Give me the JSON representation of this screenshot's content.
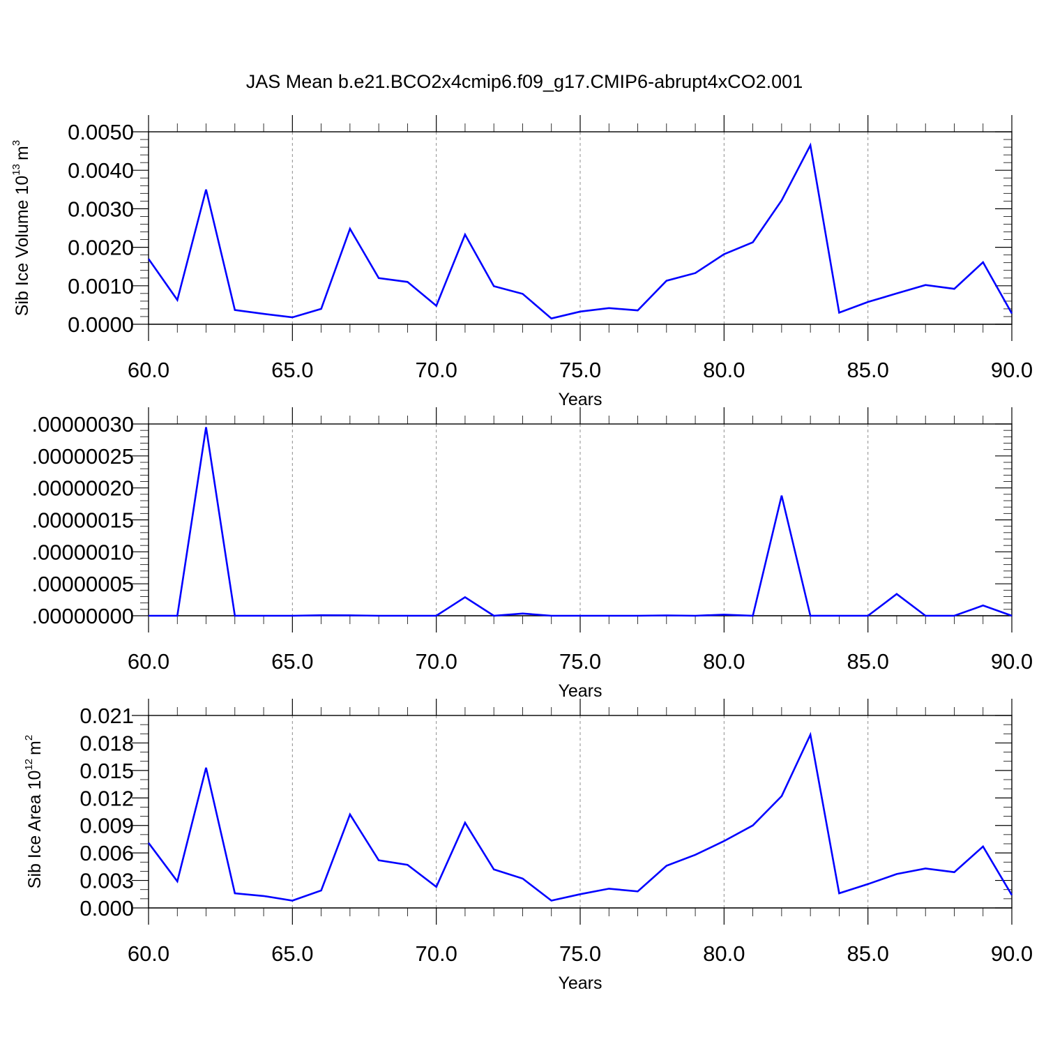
{
  "figure": {
    "title": "JAS Mean b.e21.BCO2x4cmip6.f09_g17.CMIP6-abrupt4xCO2.001"
  },
  "chart_data": [
    {
      "type": "line",
      "xlabel": "Years",
      "ylabel": "Sib Ice Volume 10",
      "ylabel_sup": "13",
      "ylabel_unit": "m",
      "ylabel_unit_sup": "3",
      "xlim": [
        60,
        90
      ],
      "ylim": [
        0,
        0.005
      ],
      "x_ticks": [
        60,
        65,
        70,
        75,
        80,
        85,
        90
      ],
      "x_tick_labels": [
        "60.0",
        "65.0",
        "70.0",
        "75.0",
        "80.0",
        "85.0",
        "90.0"
      ],
      "y_ticks": [
        0,
        0.001,
        0.002,
        0.003,
        0.004,
        0.005
      ],
      "y_tick_labels": [
        "0.0000",
        "0.0010",
        "0.0020",
        "0.0030",
        "0.0040",
        "0.0050"
      ],
      "grid": "vertical dashed at major x ticks",
      "color": "#0000ff",
      "x": [
        60,
        61,
        62,
        63,
        64,
        65,
        66,
        67,
        68,
        69,
        70,
        71,
        72,
        73,
        74,
        75,
        76,
        77,
        78,
        79,
        80,
        81,
        82,
        83,
        84,
        85,
        86,
        87,
        88,
        89,
        90
      ],
      "y": [
        0.0017,
        0.00063,
        0.0035,
        0.00037,
        0.00027,
        0.00018,
        0.0004,
        0.00248,
        0.0012,
        0.0011,
        0.00048,
        0.00233,
        0.00099,
        0.00079,
        0.00015,
        0.00033,
        0.00042,
        0.00036,
        0.00113,
        0.00133,
        0.00182,
        0.00213,
        0.00322,
        0.00465,
        0.0003,
        0.00058,
        0.0008,
        0.00102,
        0.00092,
        0.00161,
        0.00028
      ]
    },
    {
      "type": "line",
      "xlabel": "Years",
      "xlim": [
        60,
        90
      ],
      "ylim": [
        0,
        3e-07
      ],
      "x_ticks": [
        60,
        65,
        70,
        75,
        80,
        85,
        90
      ],
      "x_tick_labels": [
        "60.0",
        "65.0",
        "70.0",
        "75.0",
        "80.0",
        "85.0",
        "90.0"
      ],
      "y_ticks": [
        0,
        5e-08,
        1e-07,
        1.5e-07,
        2e-07,
        2.5e-07,
        3e-07
      ],
      "y_tick_labels": [
        ".00000000",
        ".00000005",
        ".00000010",
        ".00000015",
        ".00000020",
        ".00000025",
        ".00000030"
      ],
      "grid": "vertical dashed at major x ticks",
      "color": "#0000ff",
      "x": [
        60,
        61,
        62,
        63,
        64,
        65,
        66,
        67,
        68,
        69,
        70,
        71,
        72,
        73,
        74,
        75,
        76,
        77,
        78,
        79,
        80,
        81,
        82,
        83,
        84,
        85,
        86,
        87,
        88,
        89,
        90
      ],
      "y": [
        0,
        0,
        2.95e-07,
        0,
        0,
        0,
        8e-10,
        7e-10,
        0,
        0,
        0,
        2.9e-08,
        0,
        3.5e-09,
        0,
        0,
        0,
        0,
        6e-10,
        0,
        1.8e-09,
        0,
        1.88e-07,
        0,
        0,
        0,
        3.4e-08,
        0,
        0,
        1.6e-08,
        0
      ]
    },
    {
      "type": "line",
      "xlabel": "Years",
      "ylabel": "Sib Ice Area 10",
      "ylabel_sup": "12",
      "ylabel_unit": "m",
      "ylabel_unit_sup": "2",
      "xlim": [
        60,
        90
      ],
      "ylim": [
        0,
        0.021
      ],
      "x_ticks": [
        60,
        65,
        70,
        75,
        80,
        85,
        90
      ],
      "x_tick_labels": [
        "60.0",
        "65.0",
        "70.0",
        "75.0",
        "80.0",
        "85.0",
        "90.0"
      ],
      "y_ticks": [
        0,
        0.003,
        0.006,
        0.009,
        0.012,
        0.015,
        0.018,
        0.021
      ],
      "y_tick_labels": [
        "0.000",
        "0.003",
        "0.006",
        "0.009",
        "0.012",
        "0.015",
        "0.018",
        "0.021"
      ],
      "grid": "vertical dashed at major x ticks",
      "color": "#0000ff",
      "x": [
        60,
        61,
        62,
        63,
        64,
        65,
        66,
        67,
        68,
        69,
        70,
        71,
        72,
        73,
        74,
        75,
        76,
        77,
        78,
        79,
        80,
        81,
        82,
        83,
        84,
        85,
        86,
        87,
        88,
        89,
        90
      ],
      "y": [
        0.0071,
        0.0029,
        0.0153,
        0.0016,
        0.0013,
        0.0008,
        0.0019,
        0.0102,
        0.0052,
        0.0047,
        0.0023,
        0.0093,
        0.0042,
        0.0032,
        0.0008,
        0.0015,
        0.0021,
        0.0018,
        0.0046,
        0.0058,
        0.0073,
        0.009,
        0.0122,
        0.0189,
        0.0016,
        0.0026,
        0.0037,
        0.0043,
        0.0039,
        0.0067,
        0.0014
      ]
    }
  ]
}
